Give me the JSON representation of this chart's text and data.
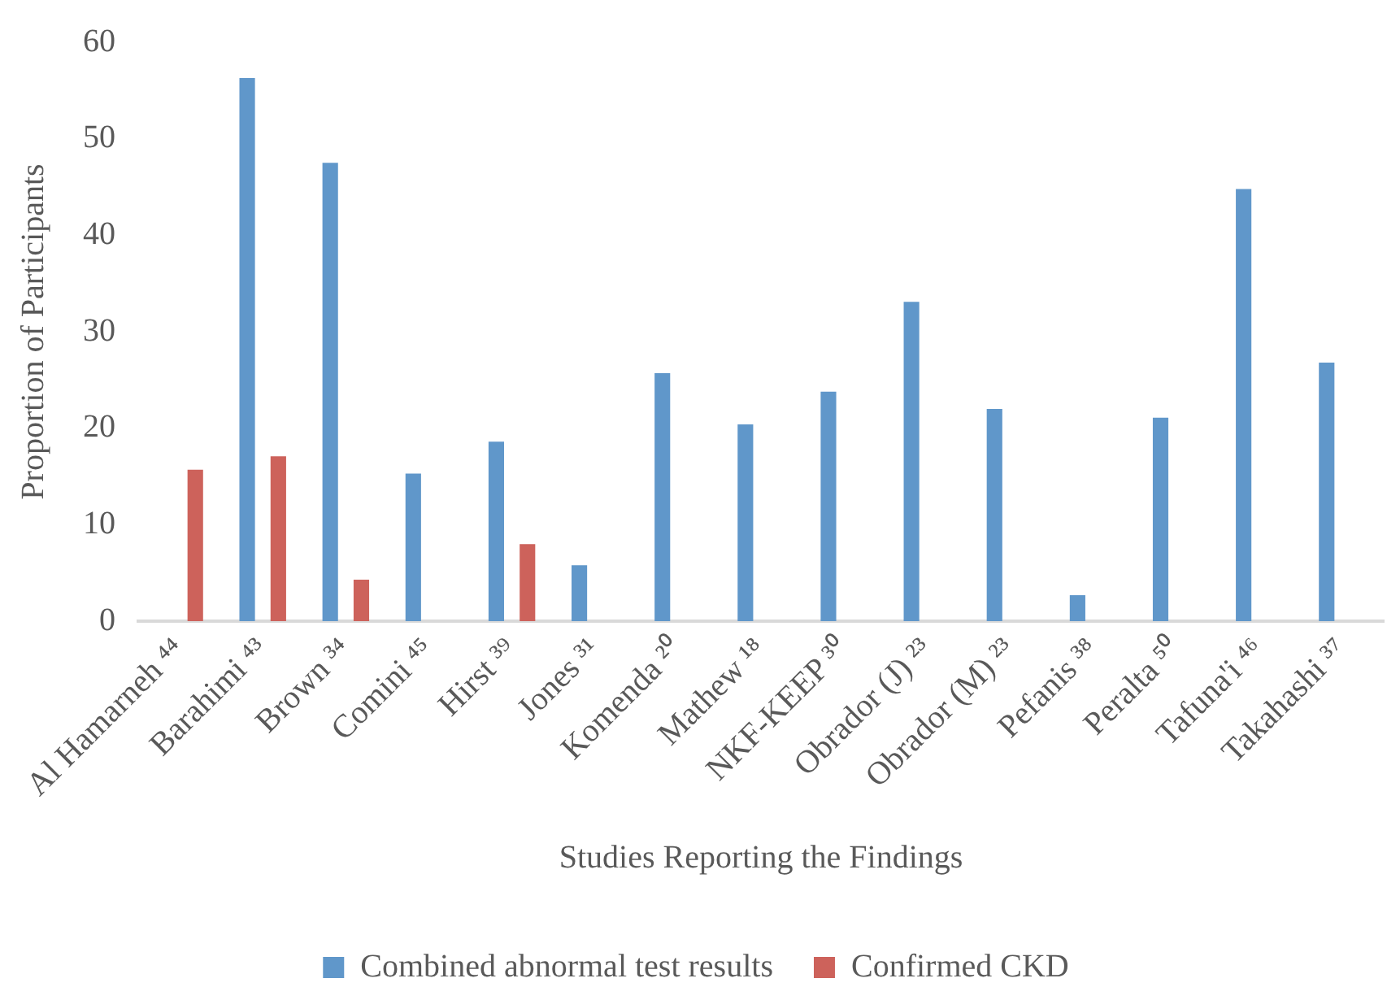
{
  "chart_data": {
    "type": "bar",
    "xlabel": "Studies Reporting the Findings",
    "ylabel": "Proportion of Participants",
    "categories": [
      "Al Hamarneh ⁴⁴",
      "Barahimi ⁴³",
      "Brown ³⁴",
      "Comini ⁴⁵",
      "Hirst ³⁹",
      "Jones ³¹",
      "Komenda ²⁰",
      "Mathew ¹⁸",
      "NKF-KEEP ³⁰",
      "Obrador (J) ²³",
      "Obrador (M) ²³",
      "Pefanis ³⁸",
      "Peralta ⁵⁰",
      "Tafuna'i ⁴⁶",
      "Takahashi ³⁷"
    ],
    "series": [
      {
        "name": "Combined abnormal test results",
        "color": "#6097ca",
        "values": [
          null,
          56.3,
          47.5,
          15.3,
          18.6,
          5.8,
          25.7,
          20.4,
          23.8,
          33.1,
          22.0,
          2.7,
          21.1,
          44.8,
          26.8
        ]
      },
      {
        "name": "Confirmed CKD",
        "color": "#cd625b",
        "values": [
          15.7,
          17.1,
          4.3,
          null,
          8.0,
          null,
          null,
          null,
          null,
          null,
          null,
          null,
          null,
          null,
          null
        ]
      }
    ],
    "ylim": [
      0,
      60
    ],
    "yticks": [
      0,
      10,
      20,
      30,
      40,
      50,
      60
    ],
    "grid": false,
    "legend": "bottom"
  }
}
